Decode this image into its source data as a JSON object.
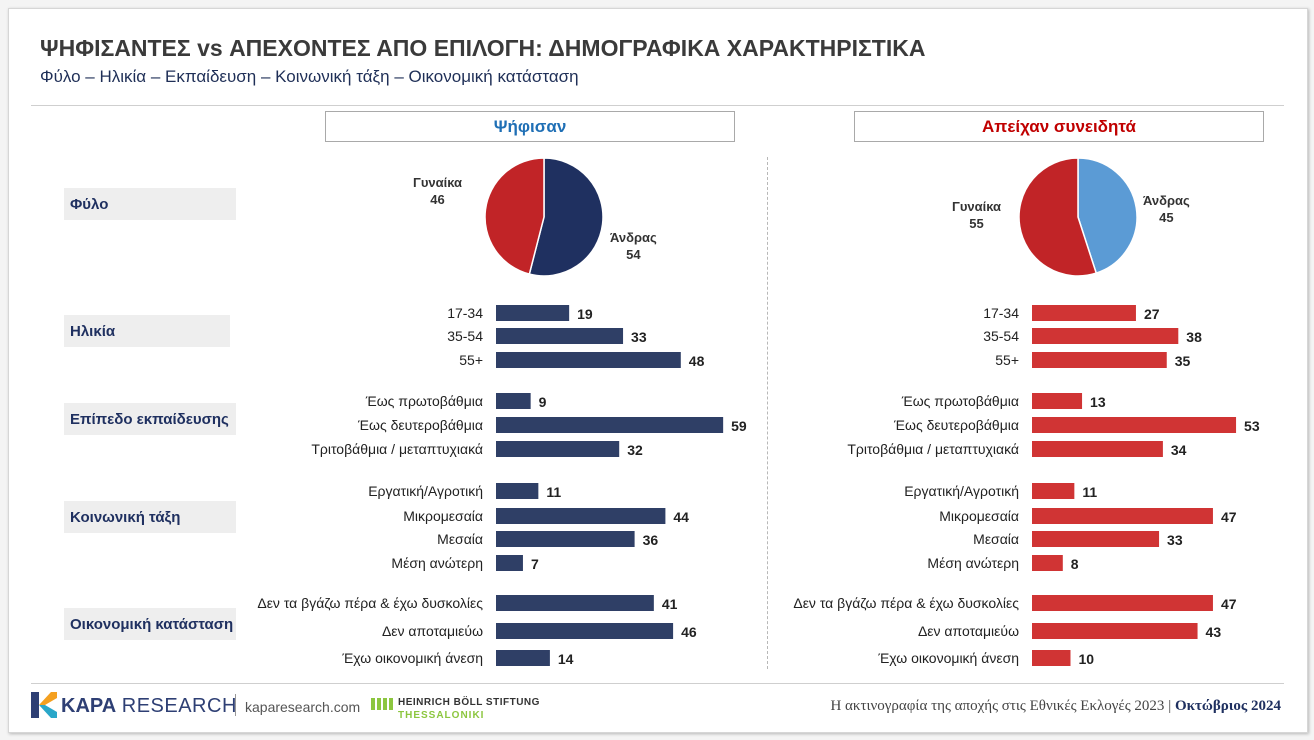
{
  "header": {
    "title": "ΨΗΦΙΣΑΝΤΕΣ vs ΑΠΕΧΟΝΤΕΣ ΑΠΟ ΕΠΙΛΟΓΗ: ΔΗΜΟΓΡΑΦΙΚΑ ΧΑΡΑΚΤΗΡΙΣΤΙΚΑ",
    "subtitle": "Φύλο – Ηλικία – Εκπαίδευση – Κοινωνική τάξη – Οικονομική κατάσταση"
  },
  "panels": {
    "left_title": "Ψήφισαν",
    "right_title": "Απείχαν συνειδητά"
  },
  "categories": {
    "gender": "Φύλο",
    "age": "Ηλικία",
    "education": "Επίπεδο εκπαίδευσης",
    "social_class": "Κοινωνική τάξη",
    "economic": "Οικονομική κατάσταση"
  },
  "colors": {
    "voted_bar": "#2f3f66",
    "abstained_bar": "#d03434",
    "pie_female": "#c12427",
    "pie_male_left": "#1f3060",
    "pie_male_right": "#5b9bd5",
    "left_title_color": "#1f6fb5",
    "right_title_color": "#c00000"
  },
  "chart_data": [
    {
      "type": "pie",
      "title": "Ψήφισαν",
      "labels": [
        "Γυναίκα",
        "Άνδρας"
      ],
      "values": [
        46,
        54
      ]
    },
    {
      "type": "pie",
      "title": "Απείχαν συνειδητά",
      "labels": [
        "Γυναίκα",
        "Άνδρας"
      ],
      "values": [
        55,
        45
      ]
    },
    {
      "type": "bar",
      "title": "Ψήφισαν",
      "groups": [
        {
          "name": "Ηλικία",
          "categories": [
            "17-34",
            "35-54",
            "55+"
          ],
          "values": [
            19,
            33,
            48
          ]
        },
        {
          "name": "Επίπεδο εκπαίδευσης",
          "categories": [
            "Έως πρωτοβάθμια",
            "Έως δευτεροβάθμια",
            "Τριτοβάθμια / μεταπτυχιακά"
          ],
          "values": [
            9,
            59,
            32
          ]
        },
        {
          "name": "Κοινωνική τάξη",
          "categories": [
            "Εργατική/Αγροτική",
            "Μικρομεσαία",
            "Μεσαία",
            "Μέση ανώτερη"
          ],
          "values": [
            11,
            44,
            36,
            7
          ]
        },
        {
          "name": "Οικονομική κατάσταση",
          "categories": [
            "Δεν τα βγάζω πέρα & έχω δυσκολίες",
            "Δεν αποταμιεύω",
            "Έχω οικονομική άνεση"
          ],
          "values": [
            41,
            46,
            14
          ]
        }
      ]
    },
    {
      "type": "bar",
      "title": "Απείχαν συνειδητά",
      "groups": [
        {
          "name": "Ηλικία",
          "categories": [
            "17-34",
            "35-54",
            "55+"
          ],
          "values": [
            27,
            38,
            35
          ]
        },
        {
          "name": "Επίπεδο εκπαίδευσης",
          "categories": [
            "Έως πρωτοβάθμια",
            "Έως δευτεροβάθμια",
            "Τριτοβάθμια / μεταπτυχιακά"
          ],
          "values": [
            13,
            53,
            34
          ]
        },
        {
          "name": "Κοινωνική τάξη",
          "categories": [
            "Εργατική/Αγροτική",
            "Μικρομεσαία",
            "Μεσαία",
            "Μέση ανώτερη"
          ],
          "values": [
            11,
            47,
            33,
            8
          ]
        },
        {
          "name": "Οικονομική κατάσταση",
          "categories": [
            "Δεν τα βγάζω πέρα & έχω δυσκολίες",
            "Δεν αποταμιεύω",
            "Έχω οικονομική άνεση"
          ],
          "values": [
            47,
            43,
            10
          ]
        }
      ]
    }
  ],
  "footer": {
    "kapa_bold": "KAPA",
    "kapa_light": "RESEARCH",
    "website": "kaparesearch.com",
    "boll_line1": "HEINRICH BÖLL STIFTUNG",
    "boll_line2": "THESSALONIKI",
    "note": "Η ακτινογραφία της αποχής στις Εθνικές Εκλογές 2023",
    "separator": "|",
    "date": "Οκτώβριος 2024"
  }
}
